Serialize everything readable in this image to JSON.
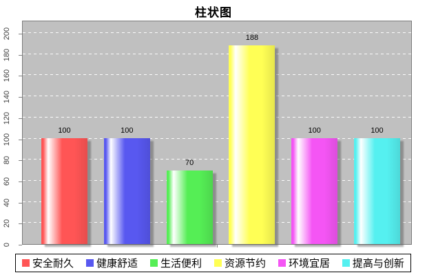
{
  "chart_data": {
    "type": "bar",
    "title": "柱状图",
    "categories": [
      ""
    ],
    "series": [
      {
        "name": "安全耐久",
        "value": 100,
        "color": "#ff5555"
      },
      {
        "name": "健康舒适",
        "value": 100,
        "color": "#5858f0"
      },
      {
        "name": "生活便利",
        "value": 70,
        "color": "#55ee55"
      },
      {
        "name": "资源节约",
        "value": 188,
        "color": "#ffff55"
      },
      {
        "name": "环境宜居",
        "value": 100,
        "color": "#f455f4"
      },
      {
        "name": "提高与创新",
        "value": 100,
        "color": "#55f0f0"
      }
    ],
    "value_labels": [
      100,
      100,
      70,
      188,
      100,
      100
    ],
    "ylim": [
      0,
      210
    ],
    "yticks": [
      0,
      20,
      40,
      60,
      80,
      100,
      120,
      140,
      160,
      180,
      200
    ],
    "grid": "horizontal-dashed-white",
    "plot_background": "#c0c0c0",
    "page_background": "#ffffff",
    "legend_position": "bottom",
    "legend_border_color": "#000000",
    "axis_color": "#808080"
  }
}
